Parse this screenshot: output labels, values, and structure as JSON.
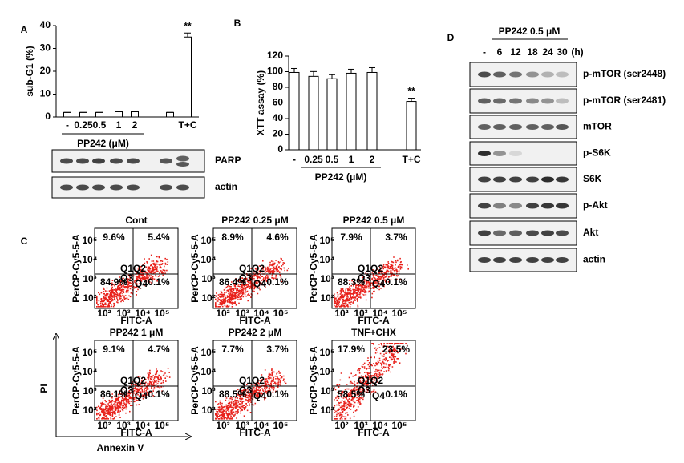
{
  "panel_labels": [
    "A",
    "B",
    "C",
    "D"
  ],
  "panel_a": {
    "chart": {
      "type": "bar",
      "y_label": "sub-G1 (%)",
      "ylim": [
        0,
        40
      ],
      "yticks": [
        0,
        10,
        20,
        30,
        40
      ],
      "categories": [
        "-",
        "0.25",
        "0.5",
        "1",
        "2",
        null,
        "T+C"
      ],
      "values": [
        2,
        2,
        2,
        2.3,
        2.3,
        2,
        35
      ],
      "annotation": "**",
      "group_label": "PP242 (μM)"
    },
    "blots": [
      "PARP",
      "actin"
    ]
  },
  "panel_b": {
    "chart": {
      "type": "bar",
      "y_label": "XTT assay (%)",
      "ylim": [
        0,
        120
      ],
      "yticks": [
        0,
        20,
        40,
        60,
        80,
        100,
        120
      ],
      "categories": [
        "-",
        "0.25",
        "0.5",
        "1",
        "2",
        "T+C"
      ],
      "values": [
        99,
        94,
        91,
        98,
        99,
        62
      ],
      "annotation": "**",
      "group_label": "PP242 (μM)"
    }
  },
  "panel_c": {
    "y_axis_label": "PerCP-Cy5-5-A",
    "x_axis_label": "FITC-A",
    "axis_ticks": [
      "10²",
      "10³",
      "10⁴",
      "10⁵"
    ],
    "quadrant_labels": [
      "Q1",
      "Q2",
      "Q3",
      "Q4"
    ],
    "plots": [
      {
        "title": "Cont",
        "q1": "9.6%",
        "q2": "5.4%",
        "q3": "84.9%",
        "q4": "0.1%"
      },
      {
        "title": "PP242 0.25 μM",
        "q1": "8.9%",
        "q2": "4.6%",
        "q3": "86.4%",
        "q4": "0.1%"
      },
      {
        "title": "PP242 0.5 μM",
        "q1": "7.9%",
        "q2": "3.7%",
        "q3": "88.3%",
        "q4": "0.1%"
      },
      {
        "title": "PP242 1 μM",
        "q1": "9.1%",
        "q2": "4.7%",
        "q3": "86.1%",
        "q4": "0.1%"
      },
      {
        "title": "PP242 2 μM",
        "q1": "7.7%",
        "q2": "3.7%",
        "q3": "88.5%",
        "q4": "0.1%"
      },
      {
        "title": "TNF+CHX",
        "q1": "17.9%",
        "q2": "23.5%",
        "q3": "58.5%",
        "q4": "0.1%"
      }
    ],
    "pi_label": "PI",
    "annexin_label": "Annexin V"
  },
  "panel_d": {
    "treatment": "PP242 0.5 μM",
    "timepoints": [
      "-",
      "6",
      "12",
      "18",
      "24",
      "30",
      "(h)"
    ],
    "blots": [
      "p-mTOR (ser2448)",
      "p-mTOR (ser2481)",
      "mTOR",
      "p-S6K",
      "S6K",
      "p-Akt",
      "Akt",
      "actin"
    ]
  }
}
